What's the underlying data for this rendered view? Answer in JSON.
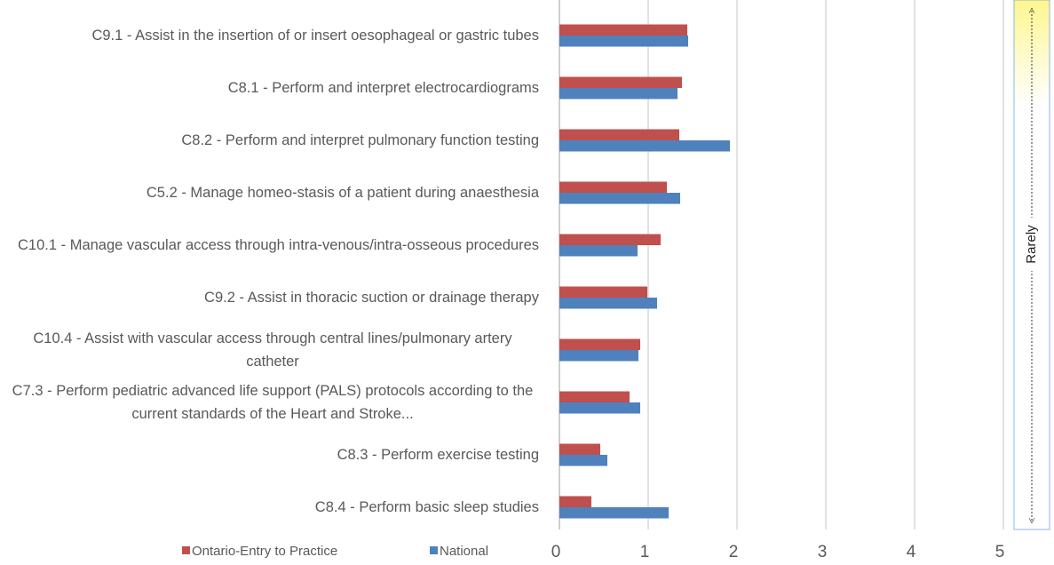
{
  "chart_data": {
    "type": "hbar",
    "categories": [
      "C9.1 - Assist in the insertion of or insert oesophageal or gastric tubes",
      "C8.1 - Perform and interpret electrocardiograms",
      "C8.2 - Perform and interpret pulmonary function testing",
      "C5.2 - Manage homeo-stasis of a patient during anaesthesia",
      "C10.1 - Manage vascular access through intra-venous/intra-osseous procedures",
      "C9.2 - Assist in thoracic suction or drainage therapy",
      "C10.4 - Assist with vascular access through central lines/pulmonary artery catheter",
      "C7.3 - Perform pediatric advanced life support (PALS) protocols according to the current standards of the Heart and Stroke...",
      "C8.3 - Perform exercise testing",
      "C8.4 - Perform basic sleep studies"
    ],
    "series": [
      {
        "name": "Ontario-Entry to Practice",
        "color": "#c0504d",
        "values": [
          1.44,
          1.38,
          1.35,
          1.21,
          1.14,
          0.99,
          0.91,
          0.79,
          0.46,
          0.36
        ]
      },
      {
        "name": "National",
        "color": "#4f81bd",
        "values": [
          1.45,
          1.33,
          1.92,
          1.36,
          0.88,
          1.1,
          0.89,
          0.91,
          0.54,
          1.23
        ]
      }
    ],
    "xlim": [
      0,
      5
    ],
    "xticks": [
      0,
      1,
      2,
      3,
      4,
      5
    ],
    "grid": true,
    "legend": "bottom-left",
    "annotation": "Rarely"
  }
}
